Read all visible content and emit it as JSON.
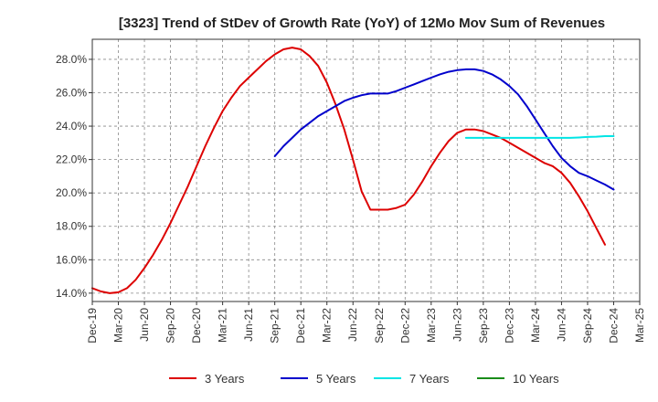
{
  "chart_data": {
    "type": "line",
    "title": "[3323]  Trend of StDev of Growth Rate (YoY) of 12Mo Mov Sum of Revenues",
    "xlabel": "",
    "ylabel": "",
    "x_ticks": [
      "Dec-19",
      "Mar-20",
      "Jun-20",
      "Sep-20",
      "Dec-20",
      "Mar-21",
      "Jun-21",
      "Sep-21",
      "Dec-21",
      "Mar-22",
      "Jun-22",
      "Sep-22",
      "Dec-22",
      "Mar-23",
      "Jun-23",
      "Sep-23",
      "Dec-23",
      "Mar-24",
      "Jun-24",
      "Sep-24",
      "Dec-24",
      "Mar-25"
    ],
    "y_ticks": [
      "14.0%",
      "16.0%",
      "18.0%",
      "20.0%",
      "22.0%",
      "24.0%",
      "26.0%",
      "28.0%"
    ],
    "y_tick_values": [
      14,
      16,
      18,
      20,
      22,
      24,
      26,
      28
    ],
    "ylim": [
      13.5,
      29.2
    ],
    "xlim": [
      0,
      63
    ],
    "x_unit": "months since Dec-19",
    "grid": true,
    "legend_position": "bottom",
    "series": [
      {
        "name": "3 Years",
        "color": "#dd0000",
        "points": [
          [
            0,
            14.3
          ],
          [
            1,
            14.1
          ],
          [
            2,
            14.0
          ],
          [
            3,
            14.05
          ],
          [
            4,
            14.3
          ],
          [
            5,
            14.8
          ],
          [
            6,
            15.5
          ],
          [
            7,
            16.3
          ],
          [
            8,
            17.2
          ],
          [
            9,
            18.2
          ],
          [
            10,
            19.3
          ],
          [
            11,
            20.4
          ],
          [
            12,
            21.6
          ],
          [
            13,
            22.8
          ],
          [
            14,
            23.9
          ],
          [
            15,
            24.9
          ],
          [
            16,
            25.7
          ],
          [
            17,
            26.4
          ],
          [
            18,
            26.9
          ],
          [
            19,
            27.4
          ],
          [
            20,
            27.9
          ],
          [
            21,
            28.3
          ],
          [
            22,
            28.6
          ],
          [
            23,
            28.7
          ],
          [
            24,
            28.6
          ],
          [
            25,
            28.2
          ],
          [
            26,
            27.6
          ],
          [
            27,
            26.6
          ],
          [
            28,
            25.3
          ],
          [
            29,
            23.8
          ],
          [
            30,
            22.0
          ],
          [
            31,
            20.1
          ],
          [
            32,
            19.0
          ],
          [
            33,
            19.0
          ],
          [
            34,
            19.0
          ],
          [
            35,
            19.1
          ],
          [
            36,
            19.3
          ],
          [
            37,
            19.9
          ],
          [
            38,
            20.7
          ],
          [
            39,
            21.6
          ],
          [
            40,
            22.4
          ],
          [
            41,
            23.1
          ],
          [
            42,
            23.6
          ],
          [
            43,
            23.8
          ],
          [
            44,
            23.8
          ],
          [
            45,
            23.7
          ],
          [
            46,
            23.5
          ],
          [
            47,
            23.3
          ],
          [
            48,
            23.0
          ],
          [
            49,
            22.7
          ],
          [
            50,
            22.4
          ],
          [
            51,
            22.1
          ],
          [
            52,
            21.8
          ],
          [
            53,
            21.6
          ],
          [
            54,
            21.2
          ],
          [
            55,
            20.6
          ],
          [
            56,
            19.8
          ],
          [
            57,
            18.9
          ],
          [
            58,
            17.9
          ],
          [
            59,
            16.9
          ]
        ]
      },
      {
        "name": "5 Years",
        "color": "#0000cc",
        "points": [
          [
            21,
            22.2
          ],
          [
            22,
            22.8
          ],
          [
            23,
            23.3
          ],
          [
            24,
            23.8
          ],
          [
            25,
            24.2
          ],
          [
            26,
            24.6
          ],
          [
            27,
            24.9
          ],
          [
            28,
            25.2
          ],
          [
            29,
            25.5
          ],
          [
            30,
            25.7
          ],
          [
            31,
            25.85
          ],
          [
            32,
            25.95
          ],
          [
            33,
            25.95
          ],
          [
            34,
            25.95
          ],
          [
            35,
            26.1
          ],
          [
            36,
            26.3
          ],
          [
            37,
            26.5
          ],
          [
            38,
            26.7
          ],
          [
            39,
            26.9
          ],
          [
            40,
            27.1
          ],
          [
            41,
            27.25
          ],
          [
            42,
            27.35
          ],
          [
            43,
            27.4
          ],
          [
            44,
            27.4
          ],
          [
            45,
            27.3
          ],
          [
            46,
            27.1
          ],
          [
            47,
            26.8
          ],
          [
            48,
            26.4
          ],
          [
            49,
            25.9
          ],
          [
            50,
            25.2
          ],
          [
            51,
            24.4
          ],
          [
            52,
            23.6
          ],
          [
            53,
            22.8
          ],
          [
            54,
            22.1
          ],
          [
            55,
            21.6
          ],
          [
            56,
            21.2
          ],
          [
            57,
            21.0
          ],
          [
            58,
            20.75
          ],
          [
            59,
            20.5
          ],
          [
            60,
            20.2
          ]
        ]
      },
      {
        "name": "7 Years",
        "color": "#00e5e5",
        "points": [
          [
            43,
            23.3
          ],
          [
            44,
            23.3
          ],
          [
            45,
            23.3
          ],
          [
            46,
            23.3
          ],
          [
            47,
            23.3
          ],
          [
            48,
            23.3
          ],
          [
            49,
            23.3
          ],
          [
            50,
            23.3
          ],
          [
            51,
            23.3
          ],
          [
            52,
            23.3
          ],
          [
            53,
            23.3
          ],
          [
            54,
            23.3
          ],
          [
            55,
            23.3
          ],
          [
            56,
            23.32
          ],
          [
            57,
            23.35
          ],
          [
            58,
            23.37
          ],
          [
            59,
            23.4
          ],
          [
            60,
            23.4
          ]
        ]
      },
      {
        "name": "10 Years",
        "color": "#1a8c1a",
        "points": []
      }
    ]
  }
}
